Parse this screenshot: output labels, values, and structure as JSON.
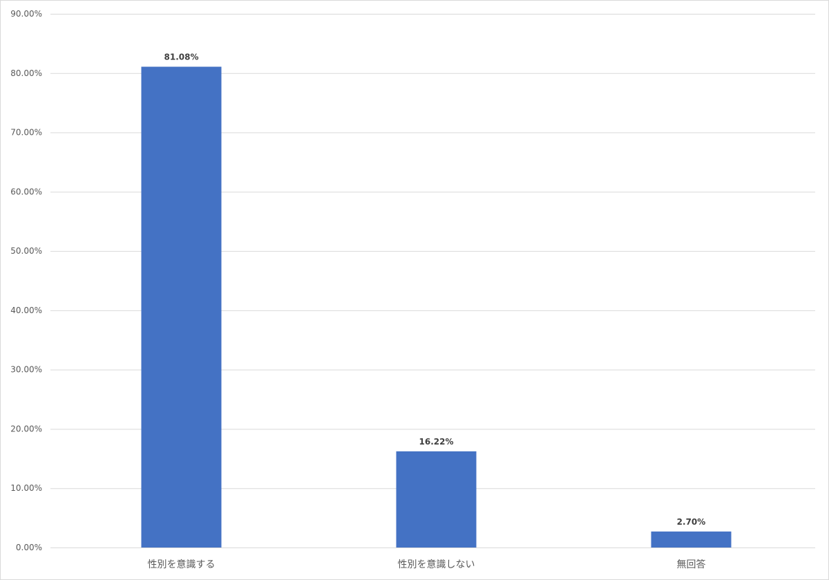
{
  "chart_data": {
    "type": "bar",
    "title": "",
    "xlabel": "",
    "ylabel": "",
    "categories": [
      "性別を意識する",
      "性別を意識しない",
      "無回答"
    ],
    "values": [
      81.08,
      16.22,
      2.7
    ],
    "data_labels": [
      "81.08%",
      "16.22%",
      "2.70%"
    ],
    "ylim": [
      0,
      90
    ],
    "yticks": [
      0,
      10,
      20,
      30,
      40,
      50,
      60,
      70,
      80,
      90
    ],
    "ytick_labels": [
      "0.00%",
      "10.00%",
      "20.00%",
      "30.00%",
      "40.00%",
      "50.00%",
      "60.00%",
      "70.00%",
      "80.00%",
      "90.00%"
    ],
    "bar_color": "#4472c4",
    "grid": true,
    "legend": "none"
  }
}
